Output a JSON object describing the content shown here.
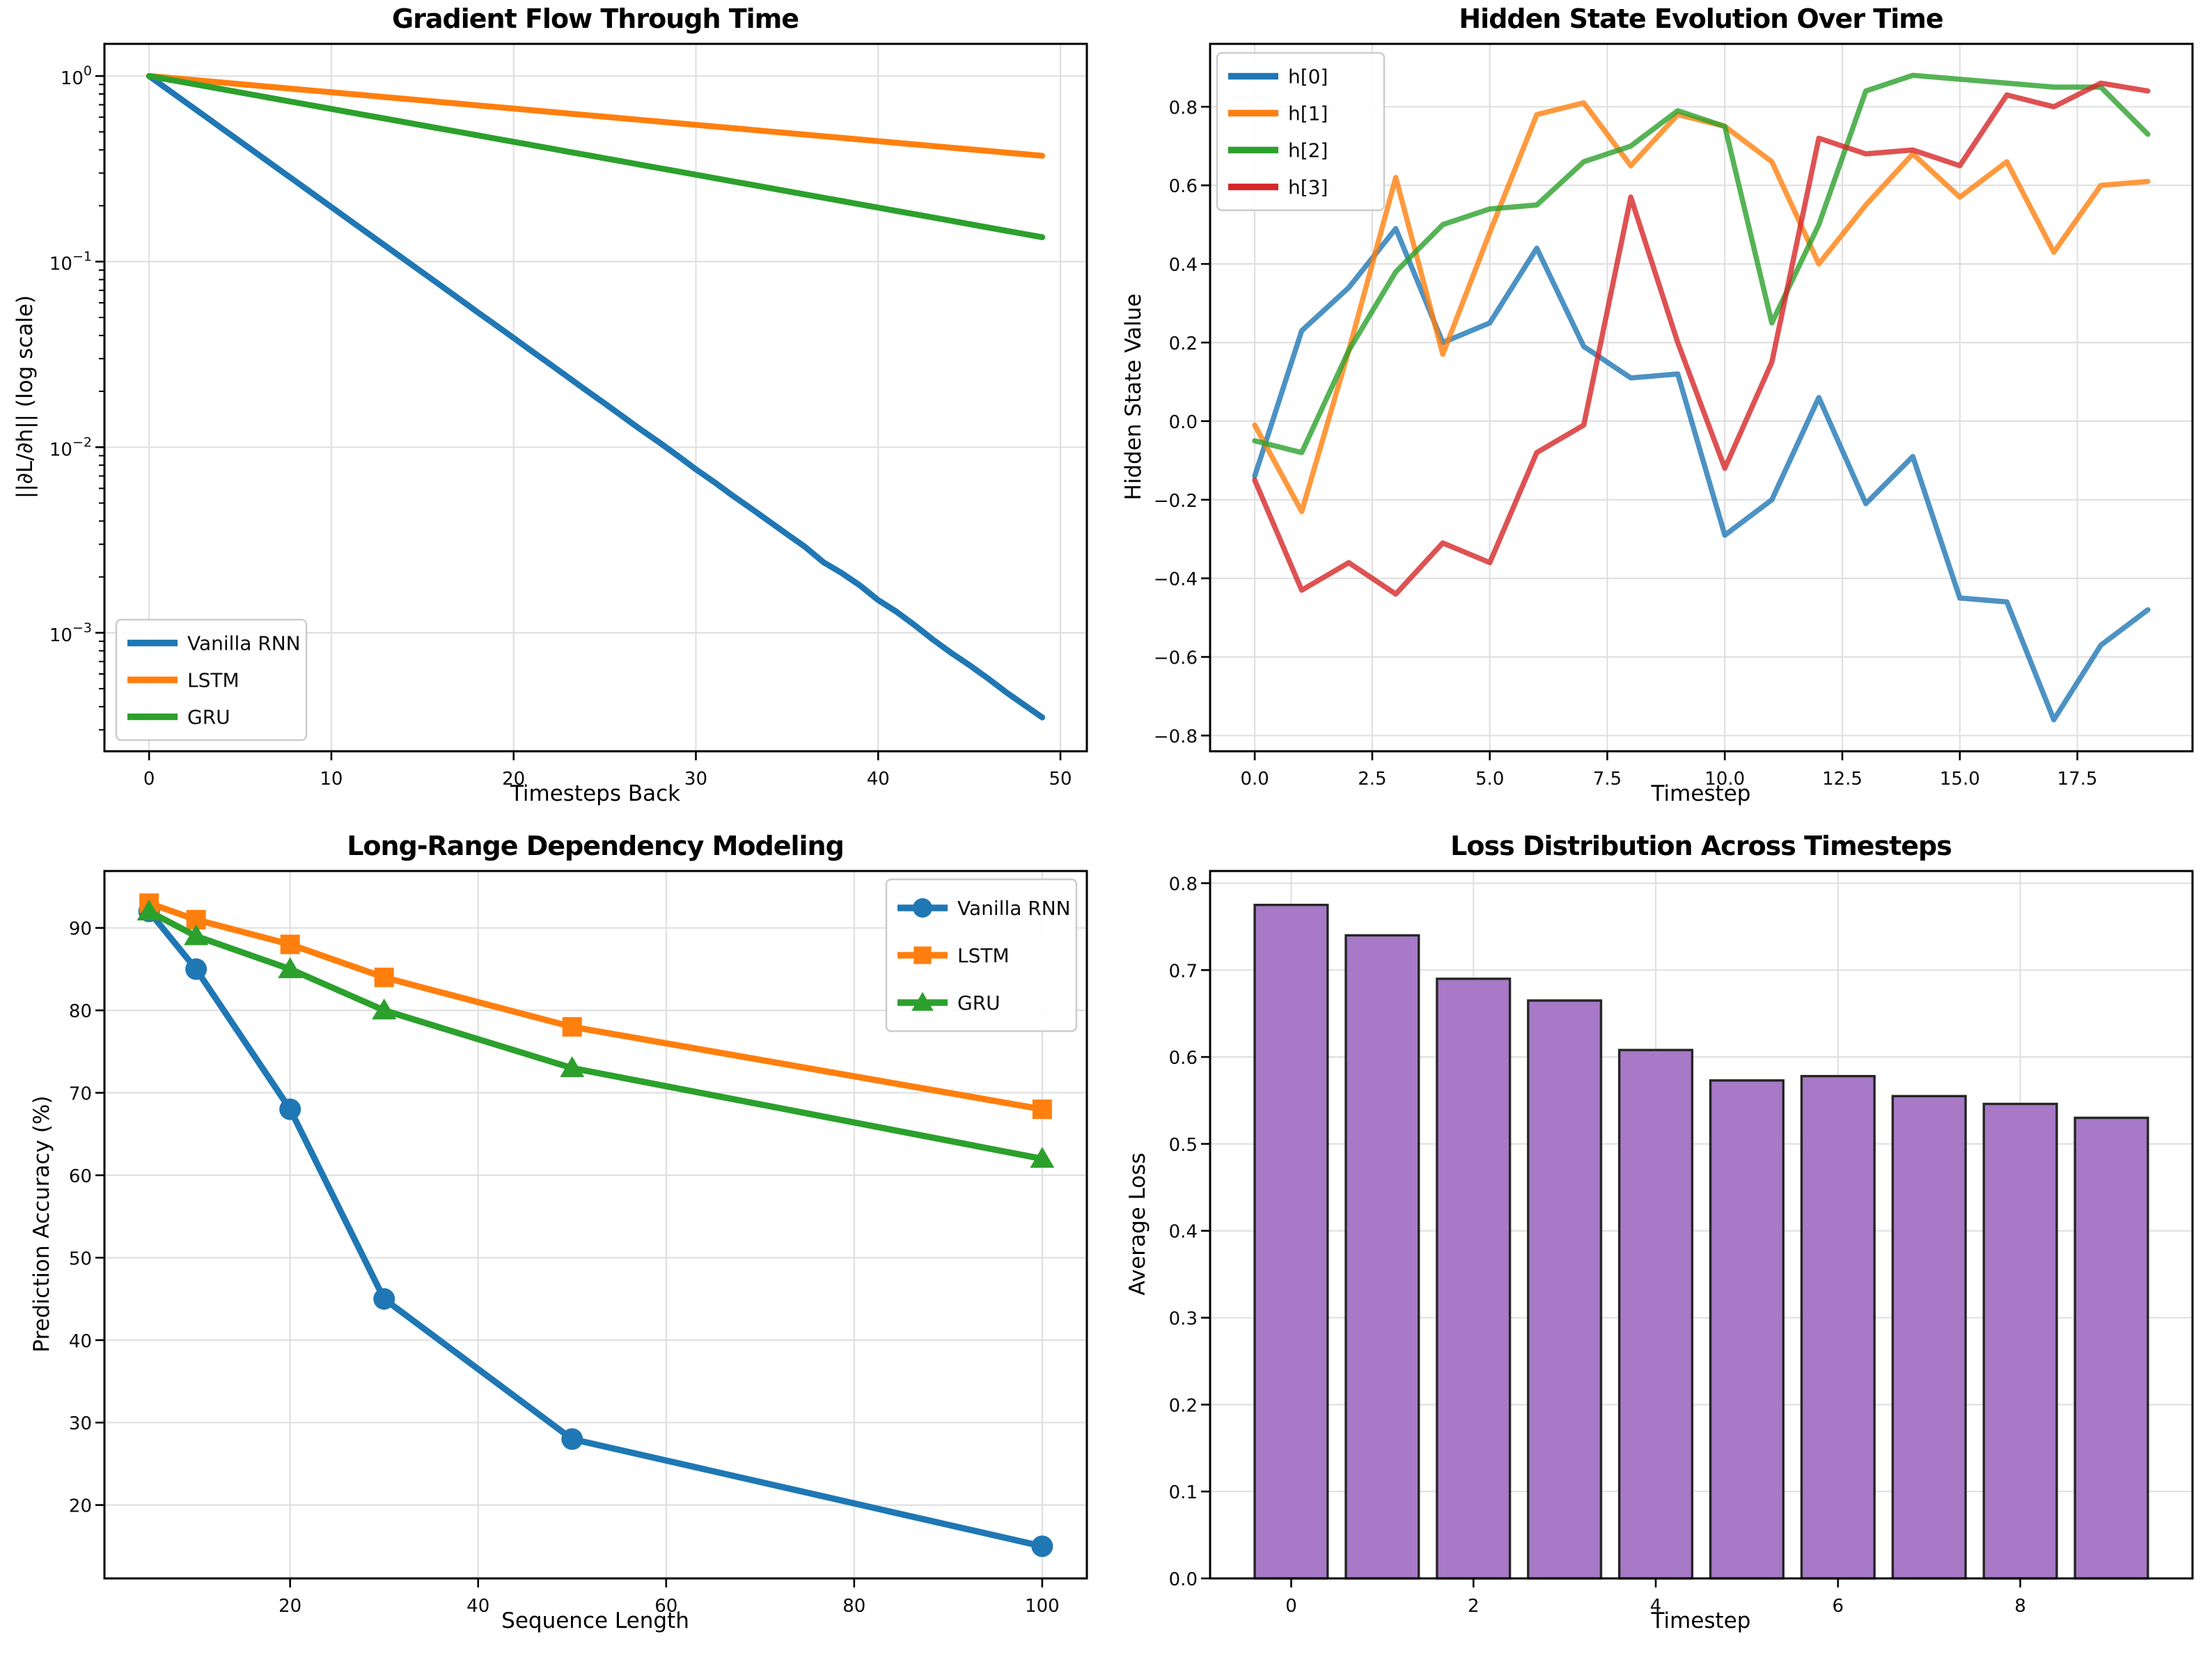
{
  "figure": {
    "background": "#ffffff"
  },
  "chart_data": [
    {
      "name": "gradient-flow",
      "type": "line",
      "title": "Gradient Flow Through Time",
      "xlabel": "Timesteps Back",
      "ylabel": "||∂L/∂h|| (log scale)",
      "yscale": "log",
      "grid": true,
      "xlim": [
        -2.45,
        51.45
      ],
      "ylim": [
        0.00023,
        1.49
      ],
      "line_width": 8.5,
      "alpha": 1,
      "x": [
        0,
        1,
        2,
        3,
        4,
        5,
        6,
        7,
        8,
        9,
        10,
        11,
        12,
        13,
        14,
        15,
        16,
        17,
        18,
        19,
        20,
        21,
        22,
        23,
        24,
        25,
        26,
        27,
        28,
        29,
        30,
        31,
        32,
        33,
        34,
        35,
        36,
        37,
        38,
        39,
        40,
        41,
        42,
        43,
        44,
        45,
        46,
        47,
        48,
        49
      ],
      "series": [
        {
          "name": "Vanilla RNN",
          "color": "#1f77b4",
          "values": [
            1.0,
            0.85,
            0.7225,
            0.6141,
            0.522,
            0.4437,
            0.3771,
            0.3206,
            0.2725,
            0.2316,
            0.1969,
            0.1673,
            0.1422,
            0.1209,
            0.1028,
            0.0874,
            0.0743,
            0.0631,
            0.0536,
            0.0456,
            0.0388,
            0.0329,
            0.028,
            0.0238,
            0.0202,
            0.0172,
            0.0146,
            0.0124,
            0.0106,
            0.009,
            0.0076,
            0.0065,
            0.0055,
            0.0047,
            0.004,
            0.0034,
            0.0029,
            0.0024,
            0.0021,
            0.0018,
            0.0015,
            0.0013,
            0.0011,
            0.00092,
            0.00078,
            0.00067,
            0.00057,
            0.00048,
            0.00041,
            0.00035
          ]
        },
        {
          "name": "LSTM",
          "color": "#ff7f0e",
          "values": [
            1.0,
            0.98,
            0.9604,
            0.9412,
            0.9224,
            0.9039,
            0.8858,
            0.8681,
            0.8508,
            0.8337,
            0.8171,
            0.8007,
            0.7847,
            0.769,
            0.7536,
            0.7386,
            0.7238,
            0.7093,
            0.6951,
            0.6812,
            0.6676,
            0.6543,
            0.6412,
            0.6283,
            0.6158,
            0.6035,
            0.5914,
            0.5796,
            0.568,
            0.5566,
            0.5455,
            0.5346,
            0.5239,
            0.5134,
            0.5031,
            0.4931,
            0.4832,
            0.4735,
            0.4641,
            0.4548,
            0.4457,
            0.4368,
            0.4281,
            0.4195,
            0.4111,
            0.4029,
            0.3949,
            0.387,
            0.3793,
            0.3717
          ]
        },
        {
          "name": "GRU",
          "color": "#2ca02c",
          "values": [
            1.0,
            0.96,
            0.9216,
            0.8847,
            0.8493,
            0.8154,
            0.7828,
            0.7514,
            0.7214,
            0.6925,
            0.6648,
            0.6382,
            0.6127,
            0.5882,
            0.5647,
            0.5421,
            0.5204,
            0.4996,
            0.4796,
            0.4604,
            0.442,
            0.4243,
            0.4073,
            0.391,
            0.3754,
            0.3604,
            0.346,
            0.3321,
            0.3188,
            0.3061,
            0.2939,
            0.2821,
            0.2708,
            0.26,
            0.2496,
            0.2396,
            0.23,
            0.2208,
            0.212,
            0.2035,
            0.1954,
            0.1876,
            0.1801,
            0.1729,
            0.1659,
            0.1593,
            0.1529,
            0.1468,
            0.141,
            0.1353
          ]
        }
      ],
      "xticks": {
        "values": [
          0,
          10,
          20,
          30,
          40,
          50
        ],
        "labels": [
          "0",
          "10",
          "20",
          "30",
          "40",
          "50"
        ]
      },
      "yticks": {
        "values": [
          1,
          0.1,
          0.01,
          0.001
        ],
        "labels": [
          "10⁰",
          "10⁻¹",
          "10⁻²",
          "10⁻³"
        ],
        "exponents": [
          "0",
          "−1",
          "−2",
          "−3"
        ]
      },
      "legend": {
        "position": "lower-left",
        "items": [
          "Vanilla RNN",
          "LSTM",
          "GRU"
        ]
      }
    },
    {
      "name": "hidden-state-evolution",
      "type": "line",
      "title": "Hidden State Evolution Over Time",
      "xlabel": "Timestep",
      "ylabel": "Hidden State Value",
      "yscale": "linear",
      "grid": true,
      "xlim": [
        -0.95,
        19.95
      ],
      "ylim": [
        -0.84,
        0.96
      ],
      "line_width": 7.5,
      "alpha": 0.8,
      "x": [
        0,
        1,
        2,
        3,
        4,
        5,
        6,
        7,
        8,
        9,
        10,
        11,
        12,
        13,
        14,
        15,
        16,
        17,
        18,
        19
      ],
      "series": [
        {
          "name": "h[0]",
          "color": "#1f77b4",
          "values": [
            -0.14,
            0.23,
            0.34,
            0.49,
            0.2,
            0.25,
            0.44,
            0.19,
            0.11,
            0.12,
            -0.29,
            -0.2,
            0.06,
            -0.21,
            -0.09,
            -0.45,
            -0.46,
            -0.76,
            -0.57,
            -0.48
          ]
        },
        {
          "name": "h[1]",
          "color": "#ff7f0e",
          "values": [
            -0.01,
            -0.23,
            0.18,
            0.62,
            0.17,
            0.48,
            0.78,
            0.81,
            0.65,
            0.78,
            0.75,
            0.66,
            0.4,
            0.55,
            0.68,
            0.57,
            0.66,
            0.43,
            0.6,
            0.61
          ]
        },
        {
          "name": "h[2]",
          "color": "#2ca02c",
          "values": [
            -0.05,
            -0.08,
            0.18,
            0.38,
            0.5,
            0.54,
            0.55,
            0.66,
            0.7,
            0.79,
            0.75,
            0.25,
            0.5,
            0.84,
            0.88,
            0.87,
            0.86,
            0.85,
            0.85,
            0.73
          ]
        },
        {
          "name": "h[3]",
          "color": "#d62728",
          "values": [
            -0.15,
            -0.43,
            -0.36,
            -0.44,
            -0.31,
            -0.36,
            -0.08,
            -0.01,
            0.57,
            0.2,
            -0.12,
            0.15,
            0.72,
            0.68,
            0.69,
            0.65,
            0.83,
            0.8,
            0.86,
            0.84
          ]
        }
      ],
      "xticks": {
        "values": [
          0,
          2.5,
          5,
          7.5,
          10,
          12.5,
          15,
          17.5
        ],
        "labels": [
          "0.0",
          "2.5",
          "5.0",
          "7.5",
          "10.0",
          "12.5",
          "15.0",
          "17.5"
        ]
      },
      "yticks": {
        "values": [
          -0.8,
          -0.6,
          -0.4,
          -0.2,
          0,
          0.2,
          0.4,
          0.6,
          0.8
        ],
        "labels": [
          "−0.8",
          "−0.6",
          "−0.4",
          "−0.2",
          "0.0",
          "0.2",
          "0.4",
          "0.6",
          "0.8"
        ]
      },
      "legend": {
        "position": "upper-left",
        "items": [
          "h[0]",
          "h[1]",
          "h[2]",
          "h[3]"
        ]
      }
    },
    {
      "name": "long-range-dependency",
      "type": "line",
      "title": "Long-Range Dependency Modeling",
      "xlabel": "Sequence Length",
      "ylabel": "Prediction Accuracy (%)",
      "yscale": "linear",
      "grid": true,
      "xlim": [
        0.25,
        104.75
      ],
      "ylim": [
        11.1,
        96.9
      ],
      "line_width": 9,
      "alpha": 1,
      "x": [
        5,
        10,
        20,
        30,
        50,
        100
      ],
      "series": [
        {
          "name": "Vanilla RNN",
          "color": "#1f77b4",
          "marker": "circle",
          "values": [
            92,
            85,
            68,
            45,
            28,
            15
          ]
        },
        {
          "name": "LSTM",
          "color": "#ff7f0e",
          "marker": "square",
          "values": [
            93,
            91,
            88,
            84,
            78,
            68
          ]
        },
        {
          "name": "GRU",
          "color": "#2ca02c",
          "marker": "triangle",
          "values": [
            92,
            89,
            85,
            80,
            73,
            62
          ]
        }
      ],
      "xticks": {
        "values": [
          20,
          40,
          60,
          80,
          100
        ],
        "labels": [
          "20",
          "40",
          "60",
          "80",
          "100"
        ]
      },
      "yticks": {
        "values": [
          20,
          30,
          40,
          50,
          60,
          70,
          80,
          90
        ],
        "labels": [
          "20",
          "30",
          "40",
          "50",
          "60",
          "70",
          "80",
          "90"
        ]
      },
      "legend": {
        "position": "upper-right",
        "items": [
          "Vanilla RNN",
          "LSTM",
          "GRU"
        ]
      }
    },
    {
      "name": "loss-distribution",
      "type": "bar",
      "title": "Loss Distribution Across Timesteps",
      "xlabel": "Timestep",
      "ylabel": "Average Loss",
      "yscale": "linear",
      "grid": true,
      "xlim": [
        -0.89,
        9.89
      ],
      "ylim": [
        0,
        0.814
      ],
      "bar_width": 0.8,
      "bar_color": "#a779c7",
      "bar_edge_color": "#262626",
      "x": [
        0,
        1,
        2,
        3,
        4,
        5,
        6,
        7,
        8,
        9
      ],
      "values": [
        0.775,
        0.74,
        0.69,
        0.665,
        0.608,
        0.573,
        0.578,
        0.555,
        0.546,
        0.53
      ],
      "xticks": {
        "values": [
          0,
          2,
          4,
          6,
          8
        ],
        "labels": [
          "0",
          "2",
          "4",
          "6",
          "8"
        ]
      },
      "yticks": {
        "values": [
          0,
          0.1,
          0.2,
          0.3,
          0.4,
          0.5,
          0.6,
          0.7,
          0.8
        ],
        "labels": [
          "0.0",
          "0.1",
          "0.2",
          "0.3",
          "0.4",
          "0.5",
          "0.6",
          "0.7",
          "0.8"
        ]
      }
    }
  ]
}
